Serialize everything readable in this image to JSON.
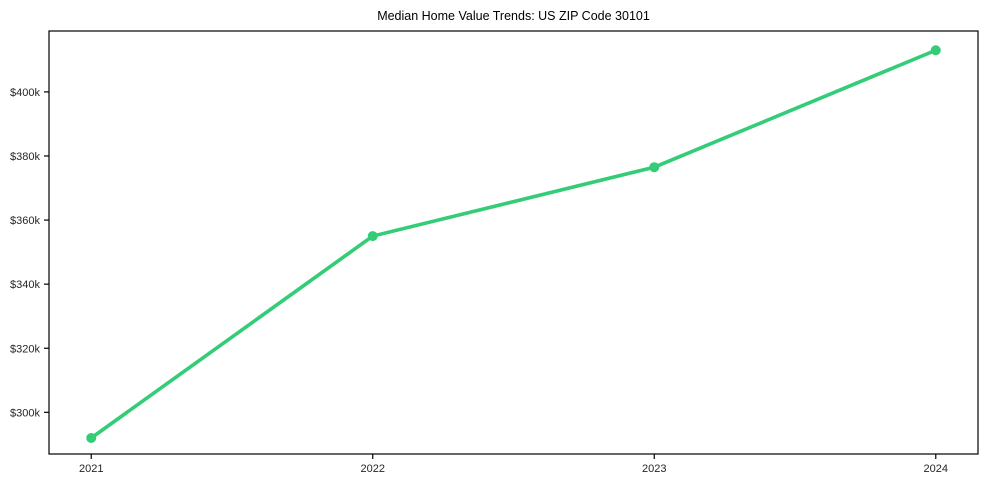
{
  "chart_data": {
    "type": "line",
    "title": "Median Home Value Trends: US ZIP Code 30101",
    "series": [
      {
        "name": "Median Home Value",
        "x": [
          2021,
          2022,
          2023,
          2024
        ],
        "values": [
          292000,
          355000,
          376500,
          413000
        ]
      }
    ],
    "x_tick_labels": [
      "2021",
      "2022",
      "2023",
      "2024"
    ],
    "y_ticks": [
      300000,
      320000,
      340000,
      360000,
      380000,
      400000
    ],
    "y_tick_labels": [
      "$300k",
      "$320k",
      "$340k",
      "$360k",
      "$380k",
      "$400k"
    ],
    "xlabel": "",
    "ylabel": "",
    "xlim": [
      2020.85,
      2024.15
    ],
    "ylim": [
      287000,
      419000
    ],
    "grid": false,
    "legend_position": "none",
    "colors": {
      "line": "#33cc77",
      "marker": "#33cc77",
      "axis": "#000000",
      "tick_label": "#262626",
      "background": "#ffffff"
    },
    "style": {
      "line_width": 3.6,
      "marker_radius": 5,
      "tick_length": 5
    }
  }
}
